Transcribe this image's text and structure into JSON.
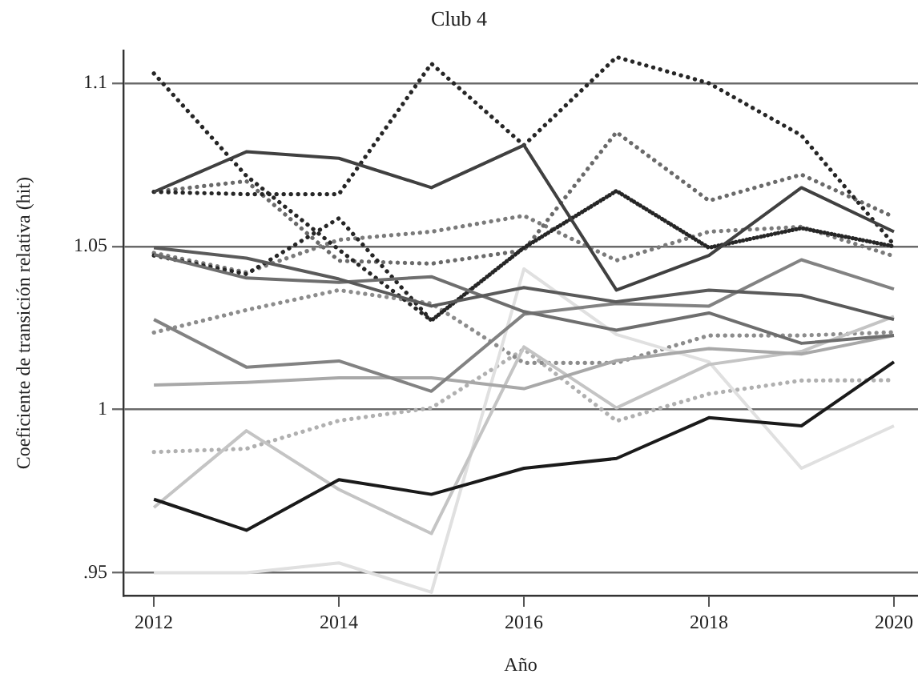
{
  "chart_data": {
    "type": "line",
    "title": "Club 4",
    "xlabel": "Año",
    "ylabel": "Coeficiente de transición relativa (hit)",
    "x": [
      2012,
      2013,
      2014,
      2015,
      2016,
      2017,
      2018,
      2019,
      2020
    ],
    "xlim": [
      2011.67,
      2020.26
    ],
    "xticks": [
      2012,
      2014,
      2016,
      2018,
      2020
    ],
    "ylim": [
      0.943,
      1.11
    ],
    "yticks": [
      {
        "value": 0.95,
        "label": ".95"
      },
      1,
      1.05,
      1.1
    ],
    "grid": "y",
    "legend": false,
    "marker": "none",
    "series": [
      {
        "color": "#1a1a1a",
        "line_style": "solid",
        "values": [
          0.9725,
          0.963,
          0.9785,
          0.974,
          0.982,
          0.985,
          0.9975,
          0.995,
          1.0146
        ]
      },
      {
        "color": "#404040",
        "line_style": "solid",
        "values": [
          1.0667,
          1.079,
          1.077,
          1.068,
          1.081,
          1.0366,
          1.0472,
          1.068,
          1.0545
        ]
      },
      {
        "color": "#5a5a5a",
        "line_style": "solid",
        "values": [
          1.0496,
          1.0464,
          1.04,
          1.0317,
          1.0374,
          1.033,
          1.0366,
          1.035,
          1.0276
        ]
      },
      {
        "color": "#6e6e6e",
        "line_style": "solid",
        "values": [
          1.0475,
          1.0403,
          1.039,
          1.0407,
          1.03,
          1.0243,
          1.0296,
          1.0203,
          1.0227
        ]
      },
      {
        "color": "#828282",
        "line_style": "solid",
        "values": [
          1.0276,
          1.013,
          1.0149,
          1.0056,
          1.0292,
          1.0325,
          1.0317,
          1.0459,
          1.0369
        ]
      },
      {
        "color": "#a8a8a8",
        "line_style": "solid",
        "values": [
          1.0075,
          1.0083,
          1.0097,
          1.0097,
          1.0064,
          1.015,
          1.0187,
          1.017,
          1.0227
        ]
      },
      {
        "color": "#c4c4c4",
        "line_style": "solid",
        "values": [
          0.97,
          0.9935,
          0.9755,
          0.962,
          1.0192,
          1.0005,
          1.0138,
          1.0178,
          1.0285
        ]
      },
      {
        "color": "#e0e0e0",
        "line_style": "solid",
        "values": [
          0.95,
          0.95,
          0.953,
          0.944,
          1.0431,
          1.023,
          1.0146,
          0.982,
          0.995
        ]
      },
      {
        "color": "#262626",
        "line_style": "dotted",
        "values": [
          1.103,
          1.0716,
          1.049,
          1.0273,
          1.0496,
          1.067,
          1.0496,
          1.0556,
          1.05
        ]
      },
      {
        "color": "#262626",
        "line_style": "dotted",
        "values": [
          1.0667,
          1.066,
          1.066,
          1.106,
          1.081,
          1.108,
          1.1,
          1.084,
          1.0505
        ]
      },
      {
        "color": "#262626",
        "line_style": "dotted",
        "values": [
          1.0472,
          1.0415,
          1.0586,
          1.0273,
          1.0496,
          1.067,
          1.0496,
          1.0556,
          1.05
        ]
      },
      {
        "color": "#6a6a6a",
        "line_style": "dotted",
        "values": [
          1.0667,
          1.07,
          1.0456,
          1.0447,
          1.0488,
          1.085,
          1.064,
          1.072,
          1.059
        ]
      },
      {
        "color": "#7a7a7a",
        "line_style": "dotted",
        "values": [
          1.048,
          1.042,
          1.052,
          1.0545,
          1.0594,
          1.0457,
          1.0545,
          1.056,
          1.047
        ]
      },
      {
        "color": "#8c8c8c",
        "line_style": "dotted",
        "values": [
          1.0236,
          1.0305,
          1.0366,
          1.0325,
          1.0143,
          1.0143,
          1.0227,
          1.0227,
          1.0237
        ]
      },
      {
        "color": "#b0b0b0",
        "line_style": "dotted",
        "values": [
          0.987,
          0.988,
          0.9966,
          1.0005,
          1.0185,
          0.9965,
          1.0048,
          1.0089,
          1.009
        ]
      }
    ]
  }
}
